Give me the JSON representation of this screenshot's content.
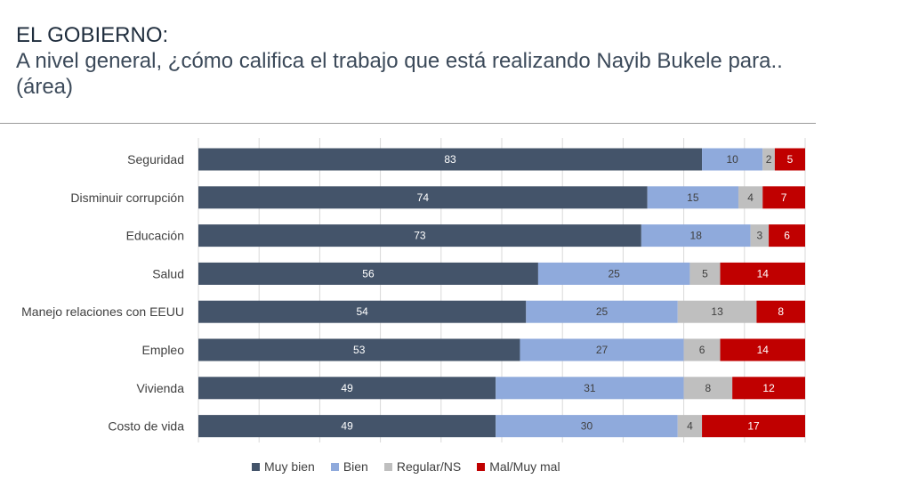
{
  "header": {
    "title": "EL GOBIERNO:",
    "subtitle": "A nivel general, ¿cómo califica el trabajo que está realizando Nayib Bukele para.. (área)"
  },
  "chart_data": {
    "type": "bar",
    "orientation": "horizontal",
    "stacked": true,
    "categories": [
      "Seguridad",
      "Disminuir corrupción",
      "Educación",
      "Salud",
      "Manejo relaciones con EEUU",
      "Empleo",
      "Vivienda",
      "Costo de vida"
    ],
    "series": [
      {
        "name": "Muy bien",
        "color": "#44546a",
        "label_color": "#ffffff",
        "values": [
          83,
          74,
          73,
          56,
          54,
          53,
          49,
          49
        ]
      },
      {
        "name": "Bien",
        "color": "#8faadc",
        "label_color": "#404040",
        "values": [
          10,
          15,
          18,
          25,
          25,
          27,
          31,
          30
        ]
      },
      {
        "name": "Regular/NS",
        "color": "#bfbfbf",
        "label_color": "#404040",
        "values": [
          2,
          4,
          3,
          5,
          13,
          6,
          8,
          4
        ]
      },
      {
        "name": "Mal/Muy mal",
        "color": "#c00000",
        "label_color": "#ffffff",
        "values": [
          5,
          7,
          6,
          14,
          8,
          14,
          12,
          17
        ]
      }
    ],
    "xlim": [
      0,
      100
    ],
    "grid": true,
    "legend_position": "bottom"
  }
}
